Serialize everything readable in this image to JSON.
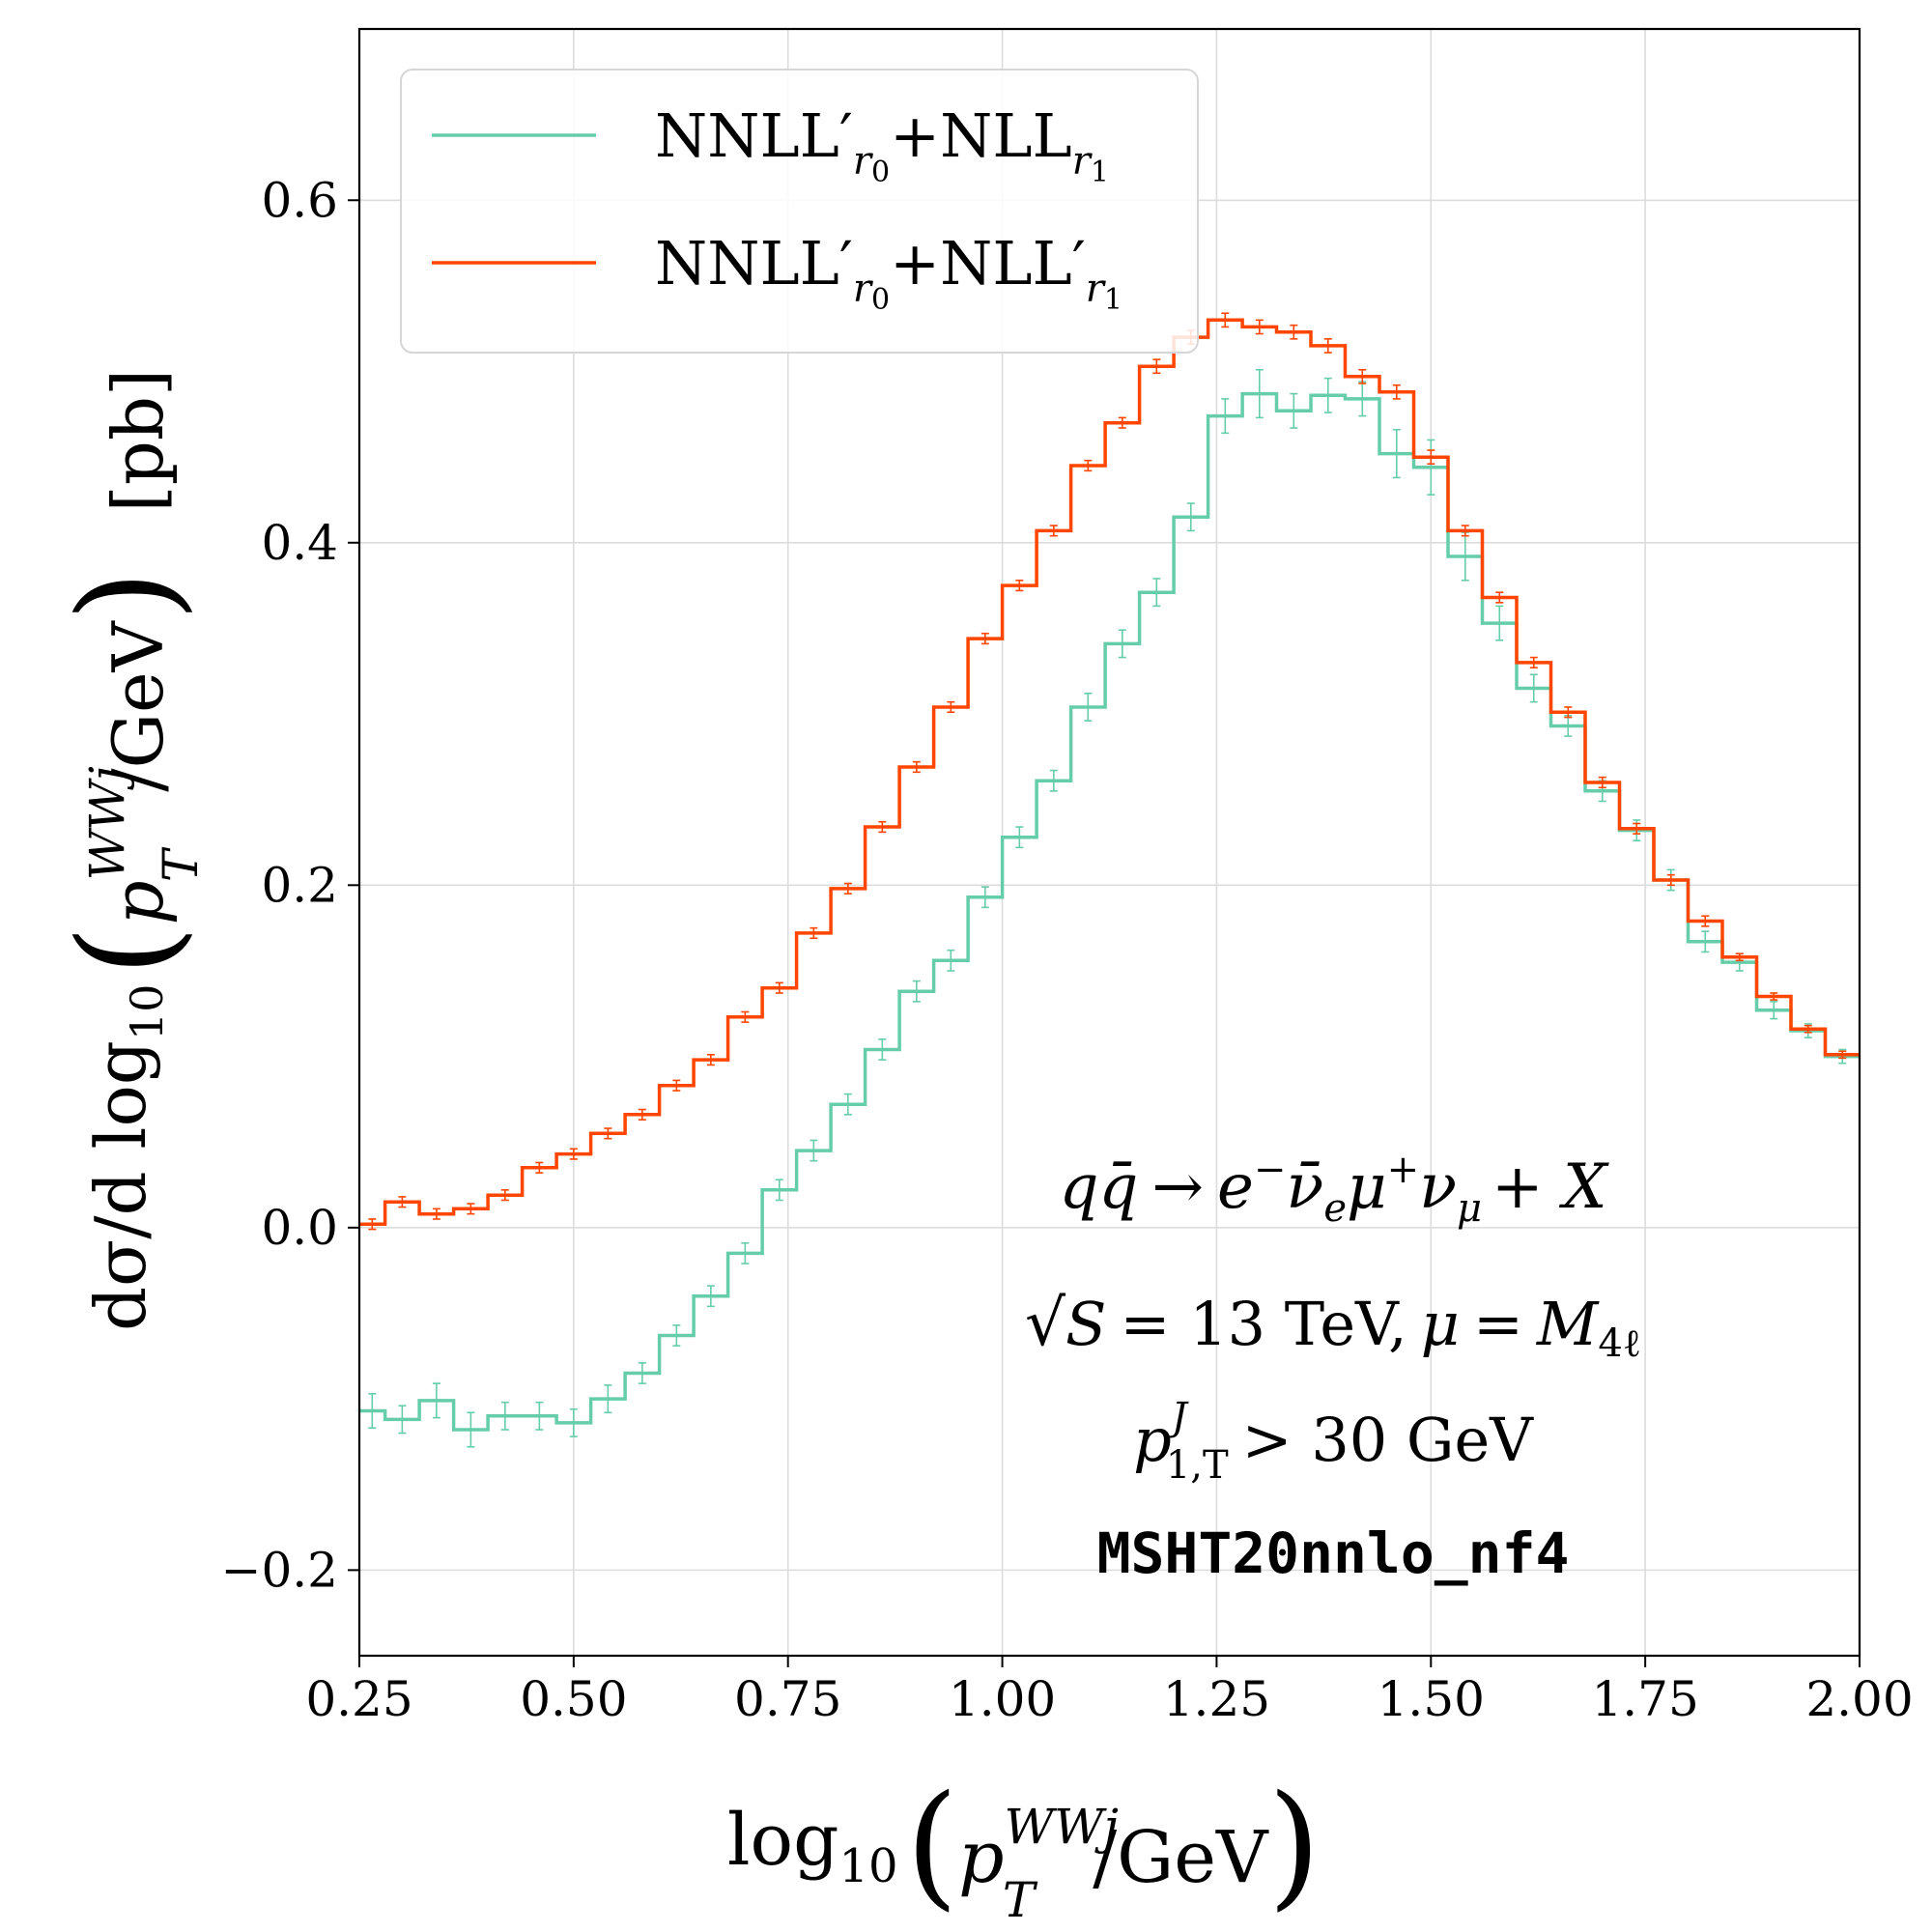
{
  "chart_data": {
    "type": "step",
    "x_edges": [
      0.25,
      0.28,
      0.32,
      0.36,
      0.4,
      0.44,
      0.48,
      0.52,
      0.56,
      0.6,
      0.64,
      0.68,
      0.72,
      0.76,
      0.8,
      0.84,
      0.88,
      0.92,
      0.96,
      1.0,
      1.04,
      1.08,
      1.12,
      1.16,
      1.2,
      1.24,
      1.28,
      1.32,
      1.36,
      1.4,
      1.44,
      1.48,
      1.52,
      1.56,
      1.6,
      1.64,
      1.68,
      1.72,
      1.76,
      1.8,
      1.84,
      1.88,
      1.92,
      1.96,
      2.0
    ],
    "series": [
      {
        "name": "NNLL'_r0+NLL_r1",
        "legend": {
          "base": "NNLL",
          "prime": "′",
          "sub1": "r",
          "sub1b": "0",
          "plus": "+NLL",
          "sub2": "r",
          "sub2b": "1",
          "prime2": ""
        },
        "color": "#66CDAA",
        "values": [
          -0.107,
          -0.112,
          -0.101,
          -0.118,
          -0.11,
          -0.11,
          -0.114,
          -0.1,
          -0.085,
          -0.063,
          -0.04,
          -0.015,
          0.022,
          0.045,
          0.072,
          0.104,
          0.138,
          0.156,
          0.193,
          0.228,
          0.261,
          0.304,
          0.341,
          0.371,
          0.415,
          0.474,
          0.487,
          0.477,
          0.486,
          0.484,
          0.452,
          0.444,
          0.392,
          0.353,
          0.315,
          0.293,
          0.255,
          0.232,
          0.203,
          0.167,
          0.155,
          0.127,
          0.115,
          0.1
        ],
        "errors": [
          0.01,
          0.008,
          0.01,
          0.01,
          0.008,
          0.008,
          0.008,
          0.008,
          0.006,
          0.006,
          0.006,
          0.006,
          0.006,
          0.006,
          0.006,
          0.006,
          0.006,
          0.006,
          0.006,
          0.006,
          0.006,
          0.008,
          0.008,
          0.008,
          0.008,
          0.01,
          0.014,
          0.01,
          0.01,
          0.01,
          0.014,
          0.016,
          0.014,
          0.01,
          0.008,
          0.006,
          0.006,
          0.006,
          0.006,
          0.006,
          0.005,
          0.005,
          0.004,
          0.004
        ]
      },
      {
        "name": "NNLL'_r0+NLL'_r1",
        "legend": {
          "base": "NNLL",
          "prime": "′",
          "sub1": "r",
          "sub1b": "0",
          "plus": "+NLL",
          "sub2": "r",
          "sub2b": "1",
          "prime2": "′"
        },
        "color": "#FF4500",
        "values": [
          0.002,
          0.015,
          0.008,
          0.011,
          0.019,
          0.035,
          0.043,
          0.055,
          0.066,
          0.083,
          0.098,
          0.123,
          0.14,
          0.172,
          0.198,
          0.234,
          0.269,
          0.304,
          0.344,
          0.375,
          0.407,
          0.445,
          0.47,
          0.503,
          0.52,
          0.53,
          0.526,
          0.523,
          0.515,
          0.497,
          0.488,
          0.45,
          0.407,
          0.368,
          0.33,
          0.301,
          0.26,
          0.233,
          0.203,
          0.179,
          0.158,
          0.135,
          0.116,
          0.101
        ],
        "errors": [
          0.003,
          0.003,
          0.003,
          0.003,
          0.003,
          0.003,
          0.003,
          0.003,
          0.003,
          0.003,
          0.003,
          0.003,
          0.003,
          0.003,
          0.003,
          0.003,
          0.003,
          0.003,
          0.003,
          0.003,
          0.003,
          0.003,
          0.003,
          0.004,
          0.004,
          0.004,
          0.004,
          0.004,
          0.004,
          0.004,
          0.004,
          0.004,
          0.003,
          0.003,
          0.003,
          0.003,
          0.003,
          0.003,
          0.003,
          0.003,
          0.002,
          0.002,
          0.002,
          0.002
        ]
      }
    ],
    "xlim": [
      0.25,
      2.0
    ],
    "ylim": [
      -0.25,
      0.7
    ],
    "xticks": [
      0.25,
      0.5,
      0.75,
      1.0,
      1.25,
      1.5,
      1.75,
      2.0
    ],
    "xtick_labels": [
      "0.25",
      "0.50",
      "0.75",
      "1.00",
      "1.25",
      "1.50",
      "1.75",
      "2.00"
    ],
    "yticks": [
      -0.2,
      0.0,
      0.2,
      0.4,
      0.6
    ],
    "ytick_labels": [
      "−0.2",
      "0.0",
      "0.2",
      "0.4",
      "0.6"
    ],
    "grid": true,
    "legend_position": "top-left",
    "xlabel": {
      "pre": "log",
      "sub": "10",
      "var": "p",
      "sup": "WWj",
      "varsub": "T",
      "post": "/GeV"
    },
    "ylabel": {
      "pre": "dσ/d log",
      "sub": "10",
      "var": "p",
      "sup": "WWj",
      "varsub": "T",
      "post": "/GeV",
      "unit": "[pb]"
    },
    "annotations": {
      "process": {
        "lhs": "q",
        "lhs2": "q̄",
        "arrow": "→",
        "e": "e",
        "e_sup": "−",
        "nu": "ν̄",
        "nu_sub": "e",
        "mu": "μ",
        "mu_sup": "+",
        "numu": "ν",
        "numu_sub": "μ",
        "tail": "+ X"
      },
      "energy": {
        "sqrt": "√",
        "s": "S",
        "eq": "= 13 TeV,",
        "mu": "μ",
        "eq2": "=",
        "m": "M",
        "m_sub": "4ℓ"
      },
      "cut": {
        "p": "p",
        "p_sup": "J",
        "p_sub": "1,T",
        "rest": "> 30 GeV"
      },
      "pdf": "MSHT20nnlo_nf4"
    }
  }
}
